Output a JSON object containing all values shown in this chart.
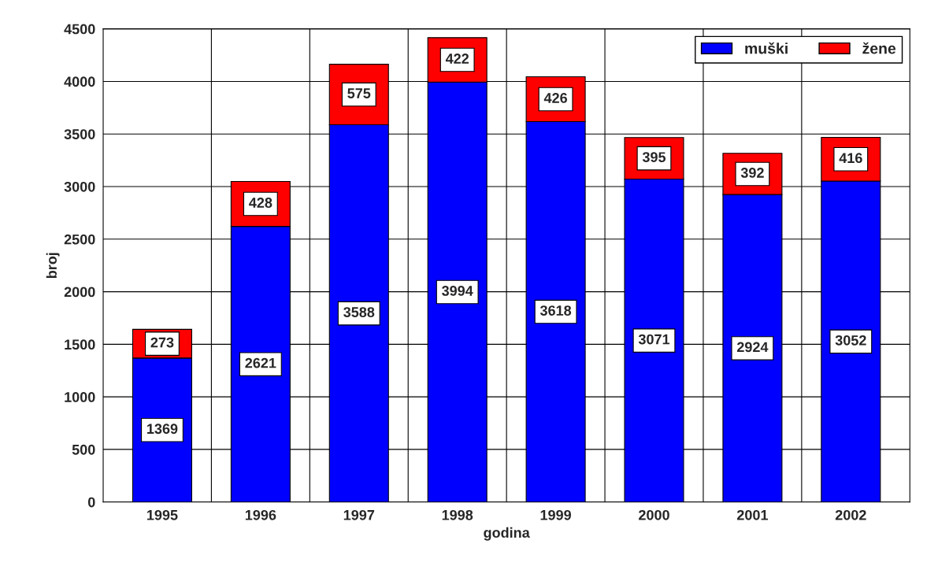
{
  "chart_data": {
    "type": "bar",
    "stacked": true,
    "xlabel": "godina",
    "ylabel": "broj",
    "categories": [
      "1995",
      "1996",
      "1997",
      "1998",
      "1999",
      "2000",
      "2001",
      "2002"
    ],
    "series": [
      {
        "name": "muški",
        "color": "#0000ff",
        "values": [
          1369,
          2621,
          3588,
          3994,
          3618,
          3071,
          2924,
          3052
        ]
      },
      {
        "name": "žene",
        "color": "#ff0000",
        "values": [
          273,
          428,
          575,
          422,
          426,
          395,
          392,
          416
        ]
      }
    ],
    "ylim": [
      0,
      4500
    ],
    "yticks": [
      0,
      500,
      1000,
      1500,
      2000,
      2500,
      3000,
      3500,
      4000,
      4500
    ],
    "grid": true,
    "legend": "top right",
    "data_labels": true
  }
}
